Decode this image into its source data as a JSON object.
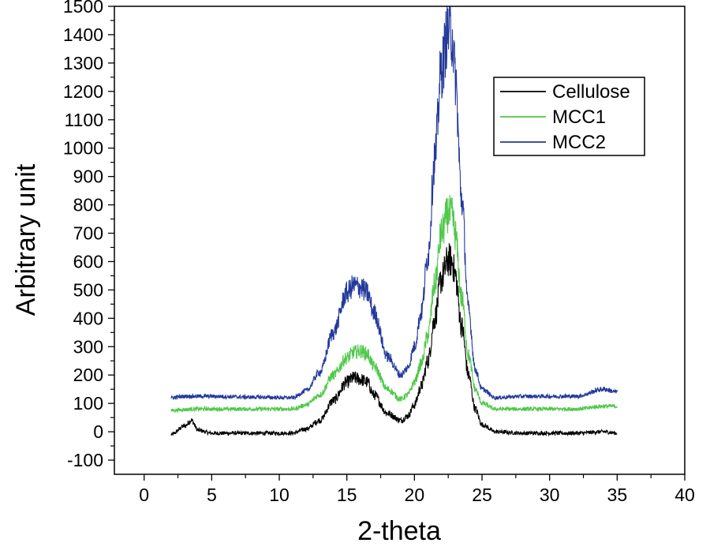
{
  "chart_data": {
    "type": "line",
    "xlabel": "2-theta",
    "ylabel": "Arbitrary unit",
    "xlim": [
      -2.2,
      40
    ],
    "ylim": [
      -150,
      1500
    ],
    "x_ticks": [
      0,
      5,
      10,
      15,
      20,
      25,
      30,
      35,
      40
    ],
    "x_tick_labels": [
      "0",
      "5",
      "10",
      "15",
      "20",
      "25",
      "30",
      "35",
      "40"
    ],
    "y_ticks": [
      -100,
      0,
      100,
      200,
      300,
      400,
      500,
      600,
      700,
      800,
      900,
      1000,
      1100,
      1200,
      1300,
      1400,
      1500
    ],
    "y_tick_labels": [
      "-100",
      "0",
      "100",
      "200",
      "300",
      "400",
      "500",
      "600",
      "700",
      "800",
      "900",
      "1000",
      "1100",
      "1200",
      "1300",
      "1400",
      "1500"
    ],
    "legend_position": "top-right",
    "x": [
      2,
      3,
      3.5,
      4,
      5,
      8,
      11,
      12,
      13,
      14,
      15,
      15.5,
      16,
      16.5,
      17,
      18,
      19,
      19.5,
      20,
      20.5,
      21,
      21.5,
      22,
      22.5,
      22.8,
      23,
      23.5,
      24,
      24.5,
      25,
      26,
      28,
      32,
      34,
      35
    ],
    "series": [
      {
        "name": "Cellulose",
        "color": "#000000",
        "values": [
          -10,
          20,
          40,
          5,
          -5,
          -5,
          -5,
          10,
          40,
          110,
          175,
          190,
          185,
          175,
          130,
          65,
          40,
          55,
          95,
          160,
          250,
          400,
          540,
          605,
          600,
          555,
          370,
          200,
          80,
          25,
          0,
          -5,
          -5,
          0,
          -5
        ]
      },
      {
        "name": "MCC1",
        "color": "#4fc84a",
        "values": [
          75,
          78,
          80,
          80,
          80,
          80,
          80,
          95,
          130,
          200,
          260,
          280,
          285,
          275,
          230,
          150,
          115,
          130,
          175,
          240,
          340,
          520,
          700,
          770,
          760,
          700,
          470,
          270,
          150,
          100,
          80,
          80,
          80,
          90,
          90
        ]
      },
      {
        "name": "MCC2",
        "color": "#23399b",
        "values": [
          120,
          125,
          125,
          125,
          125,
          122,
          120,
          145,
          210,
          350,
          490,
          515,
          510,
          490,
          420,
          265,
          200,
          225,
          300,
          420,
          620,
          960,
          1280,
          1420,
          1400,
          1260,
          820,
          430,
          220,
          150,
          120,
          125,
          125,
          150,
          140
        ]
      }
    ]
  }
}
